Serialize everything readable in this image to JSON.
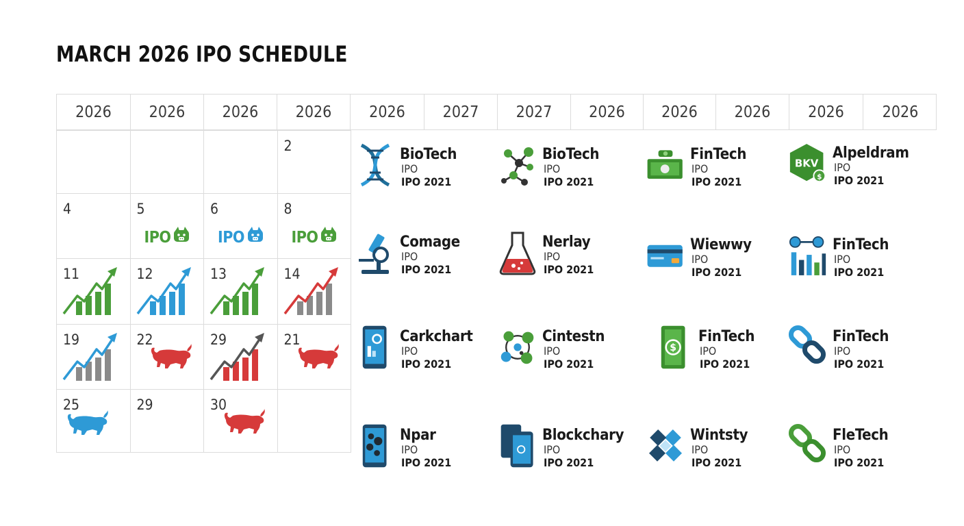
{
  "title": "MARCH 2026 IPO SCHEDULE",
  "years": [
    "2026",
    "2026",
    "2026",
    "2026",
    "2026",
    "2027",
    "2027",
    "2026",
    "2026",
    "2026",
    "2026",
    "2026"
  ],
  "calendar": [
    {
      "day": "",
      "icon": "none"
    },
    {
      "day": "",
      "icon": "none"
    },
    {
      "day": "",
      "icon": "none"
    },
    {
      "day": "2",
      "icon": "none"
    },
    {
      "day": "4",
      "icon": "none"
    },
    {
      "day": "5",
      "icon": "ipo-green",
      "badge": "IPO"
    },
    {
      "day": "6",
      "icon": "ipo-blue",
      "badge": "IPO"
    },
    {
      "day": "8",
      "icon": "ipo-green",
      "badge": "IPO"
    },
    {
      "day": "11",
      "icon": "chart-green"
    },
    {
      "day": "12",
      "icon": "chart-blue"
    },
    {
      "day": "13",
      "icon": "chart-green"
    },
    {
      "day": "14",
      "icon": "chart-red"
    },
    {
      "day": "19",
      "icon": "chart-grey"
    },
    {
      "day": "22",
      "icon": "bull-red"
    },
    {
      "day": "29",
      "icon": "chart-red-grey"
    },
    {
      "day": "21",
      "icon": "bull-red"
    },
    {
      "day": "25",
      "icon": "bull-blue"
    },
    {
      "day": "29",
      "icon": "none"
    },
    {
      "day": "30",
      "icon": "bull-red"
    },
    {
      "day": "",
      "icon": "none"
    }
  ],
  "companies": [
    {
      "name": "BioTech",
      "line1": "IPO",
      "line2": "IPO 2021",
      "icon": "dna-icon"
    },
    {
      "name": "BioTech",
      "line1": "IPO",
      "line2": "IPO 2021",
      "icon": "molecule-icon"
    },
    {
      "name": "FinTech",
      "line1": "IPO",
      "line2": "IPO 2021",
      "icon": "cash-icon"
    },
    {
      "name": "Alpeldram",
      "line1": "IPO",
      "line2": "IPO 2021",
      "icon": "hex-logo-icon",
      "logo_text": "BKV"
    },
    {
      "name": "Comage",
      "line1": "IPO",
      "line2": "IPO 2021",
      "icon": "microscope-icon"
    },
    {
      "name": "Nerlay",
      "line1": "IPO",
      "line2": "IPO 2021",
      "icon": "flask-icon"
    },
    {
      "name": "Wiewwy",
      "line1": "IPO",
      "line2": "IPO 2021",
      "icon": "credit-card-icon"
    },
    {
      "name": "FinTech",
      "line1": "IPO",
      "line2": "IPO 2021",
      "icon": "bar-network-icon"
    },
    {
      "name": "Carkchart",
      "line1": "IPO",
      "line2": "IPO 2021",
      "icon": "phone-chart-icon"
    },
    {
      "name": "Cintestn",
      "line1": "IPO",
      "line2": "IPO 2021",
      "icon": "cells-icon"
    },
    {
      "name": "FinTech",
      "line1": "IPO",
      "line2": "IPO 2021",
      "icon": "banknote-icon"
    },
    {
      "name": "FinTech",
      "line1": "IPO",
      "line2": "IPO 2021",
      "icon": "chain-link-blue-icon"
    },
    {
      "name": "Npar",
      "line1": "IPO",
      "line2": "IPO 2021",
      "icon": "phone-bubbles-icon"
    },
    {
      "name": "Blockchary",
      "line1": "IPO",
      "line2": "IPO 2021",
      "icon": "phones-icon"
    },
    {
      "name": "Wintsty",
      "line1": "IPO",
      "line2": "IPO 2021",
      "icon": "blocks-icon"
    },
    {
      "name": "FleTech",
      "line1": "IPO",
      "line2": "IPO 2021",
      "icon": "chain-link-green-icon"
    }
  ],
  "colors": {
    "green": "#4a9e3a",
    "blue": "#2e9ad6",
    "red": "#d63a3a",
    "grey": "#8a8a8a",
    "navy": "#1f4a6b"
  }
}
